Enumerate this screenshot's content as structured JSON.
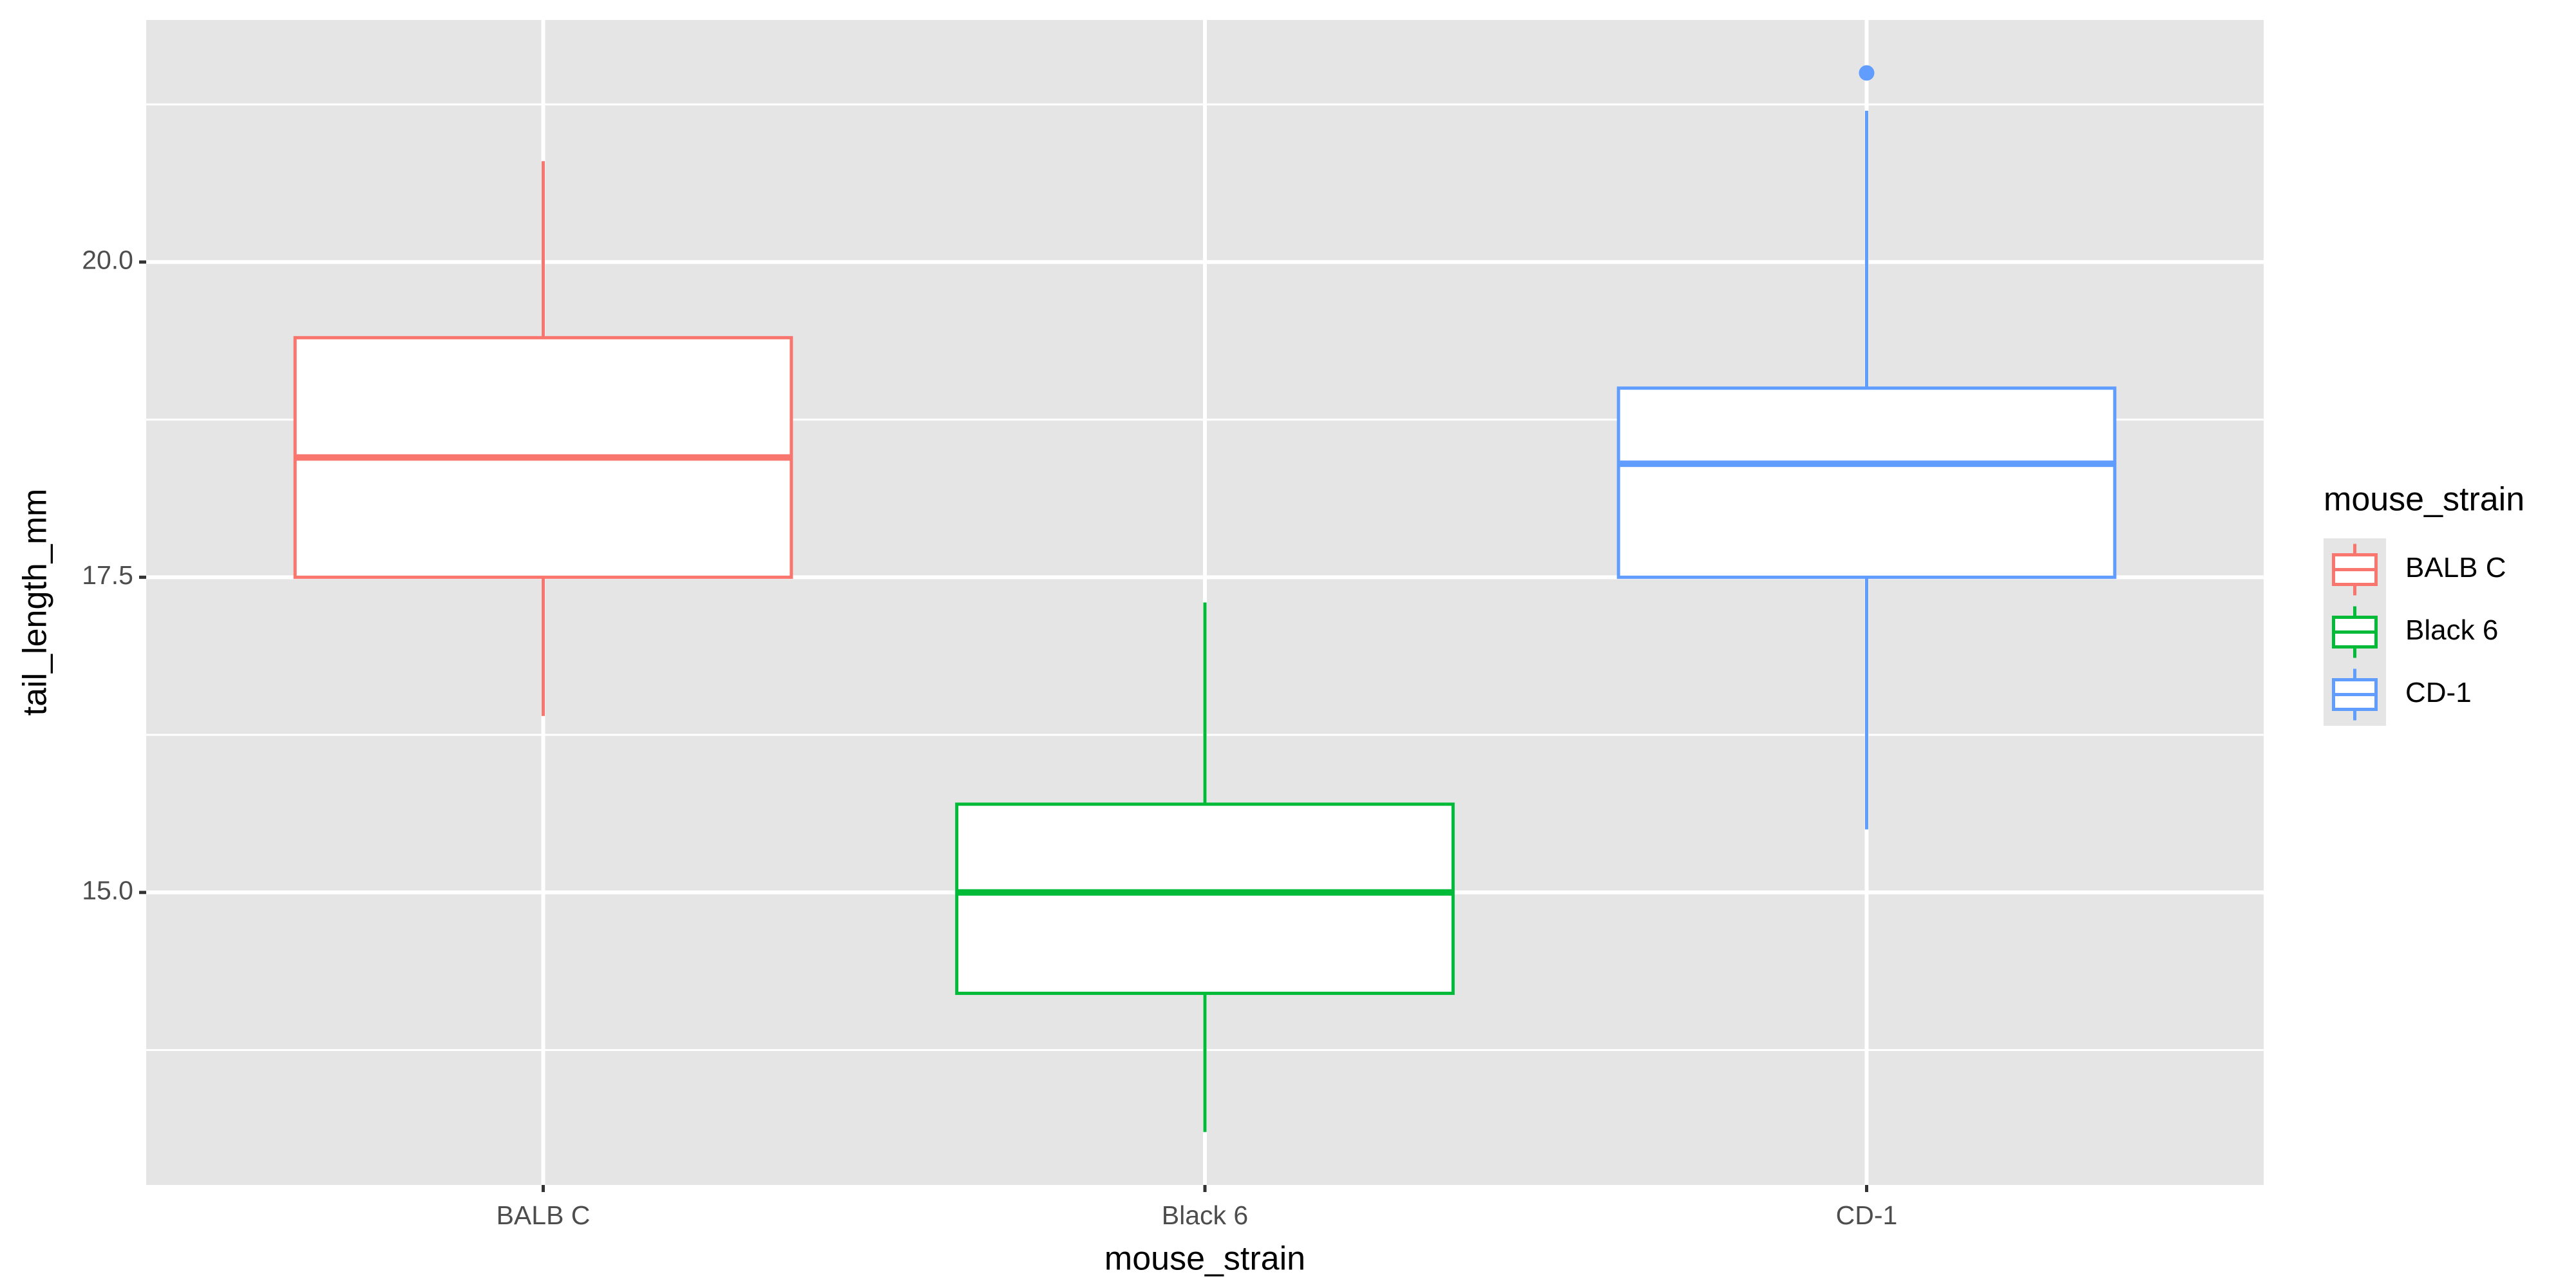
{
  "chart_data": {
    "type": "boxplot",
    "x_label": "mouse_strain",
    "y_label": "tail_length_mm",
    "legend_title": "mouse_strain",
    "categories": [
      "BALB C",
      "Black 6",
      "CD-1"
    ],
    "colors": [
      "#f8766d",
      "#00ba38",
      "#619cff"
    ],
    "boxes": [
      {
        "whisker_low": 16.4,
        "q1": 17.5,
        "median": 18.45,
        "q3": 19.4,
        "whisker_high": 20.8,
        "outliers": []
      },
      {
        "whisker_low": 13.1,
        "q1": 14.2,
        "median": 15.0,
        "q3": 15.7,
        "whisker_high": 17.3,
        "outliers": []
      },
      {
        "whisker_low": 15.5,
        "q1": 17.5,
        "median": 18.4,
        "q3": 19.0,
        "whisker_high": 21.2,
        "outliers": [
          21.5
        ]
      }
    ],
    "ylim": [
      12.68,
      21.92
    ],
    "yticks": [
      {
        "value": 15,
        "label": "15.0"
      },
      {
        "value": 17.5,
        "label": "17.5"
      },
      {
        "value": 20,
        "label": "20.0"
      }
    ],
    "grid": true,
    "legend": "right"
  }
}
